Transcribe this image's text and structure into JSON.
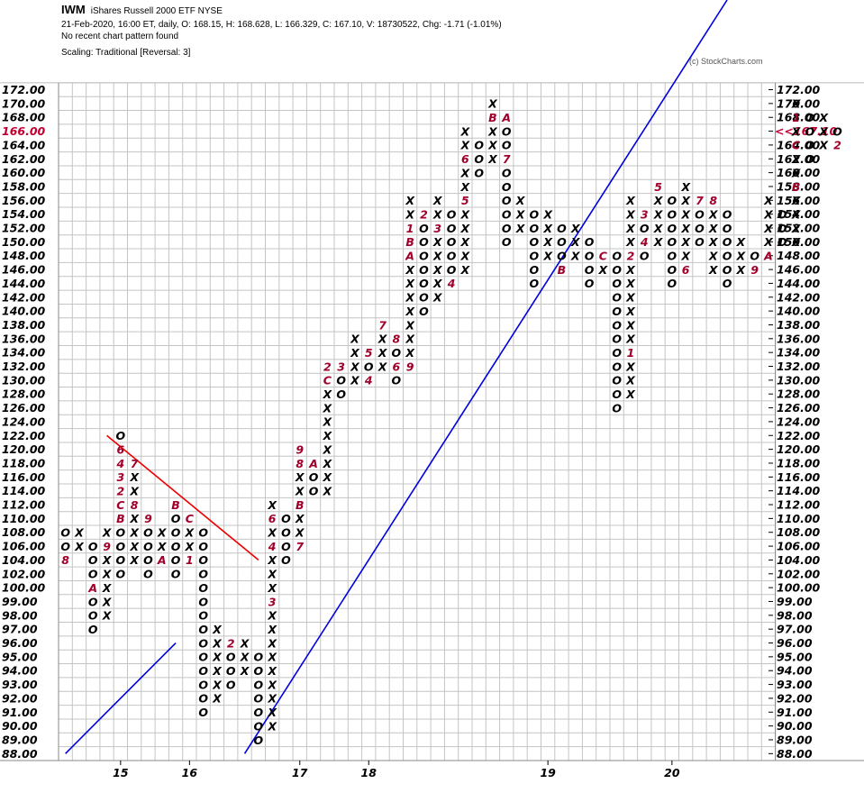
{
  "header": {
    "symbol": "IWM",
    "name": "iShares Russell 2000 ETF  NYSE",
    "line2": "21-Feb-2020, 16:00 ET, daily, O: 168.15, H: 168.628, L: 166.329, C: 167.10, V: 18730522, Chg: -1.71 (-1.01%)",
    "line3": "No recent chart pattern found",
    "line4": "Scaling: Traditional [Reversal: 3]",
    "copyright": "(c) StockCharts.com"
  },
  "colors": {
    "grid": "#c4c4c4",
    "mark": "#000000",
    "month": "#a0002a",
    "uptrend": "#0000dd",
    "downtrend": "#ee0000",
    "current": "#c00030"
  },
  "chart_data": {
    "type": "point-and-figure",
    "reversal": 3,
    "scaling": "Traditional",
    "price_levels": [
      "88.00",
      "89.00",
      "90.00",
      "91.00",
      "92.00",
      "93.00",
      "94.00",
      "95.00",
      "96.00",
      "97.00",
      "98.00",
      "99.00",
      "100.00",
      "102.00",
      "104.00",
      "106.00",
      "108.00",
      "110.00",
      "112.00",
      "114.00",
      "116.00",
      "118.00",
      "120.00",
      "122.00",
      "124.00",
      "126.00",
      "128.00",
      "130.00",
      "132.00",
      "134.00",
      "136.00",
      "138.00",
      "140.00",
      "142.00",
      "144.00",
      "146.00",
      "148.00",
      "150.00",
      "152.00",
      "154.00",
      "156.00",
      "158.00",
      "160.00",
      "162.00",
      "164.00",
      "166.00",
      "168.00",
      "170.00",
      "172.00"
    ],
    "current_price_label": "<<167.10",
    "current_price_level": "166.00",
    "year_labels": [
      {
        "col": 4,
        "text": "15"
      },
      {
        "col": 9,
        "text": "16"
      },
      {
        "col": 17,
        "text": "17"
      },
      {
        "col": 22,
        "text": "18"
      },
      {
        "col": 35,
        "text": "19"
      },
      {
        "col": 44,
        "text": "20"
      }
    ],
    "columns": [
      {
        "t": "O",
        "from": "104.00",
        "to": "108.00",
        "m": {
          "104.00": "8"
        }
      },
      {
        "t": "X",
        "from": "106.00",
        "to": "108.00"
      },
      {
        "t": "O",
        "from": "97.00",
        "to": "106.00",
        "m": {
          "100.00": "A"
        }
      },
      {
        "t": "X",
        "from": "98.00",
        "to": "108.00",
        "m": {
          "106.00": "9"
        }
      },
      {
        "t": "O",
        "from": "102.00",
        "to": "122.00",
        "m": {
          "110.00": "B",
          "112.00": "C",
          "114.00": "2",
          "116.00": "3",
          "118.00": "4",
          "120.00": "6"
        }
      },
      {
        "t": "X",
        "from": "104.00",
        "to": "118.00",
        "m": {
          "112.00": "8",
          "118.00": "7"
        }
      },
      {
        "t": "O",
        "from": "102.00",
        "to": "110.00",
        "m": {
          "110.00": "9"
        }
      },
      {
        "t": "X",
        "from": "104.00",
        "to": "108.00",
        "m": {
          "104.00": "A"
        }
      },
      {
        "t": "O",
        "from": "102.00",
        "to": "112.00",
        "m": {
          "112.00": "B"
        }
      },
      {
        "t": "X",
        "from": "104.00",
        "to": "110.00",
        "m": {
          "104.00": "1",
          "110.00": "C"
        }
      },
      {
        "t": "O",
        "from": "91.00",
        "to": "108.00"
      },
      {
        "t": "X",
        "from": "92.00",
        "to": "97.00"
      },
      {
        "t": "O",
        "from": "93.00",
        "to": "96.00",
        "m": {
          "96.00": "2"
        }
      },
      {
        "t": "X",
        "from": "94.00",
        "to": "96.00"
      },
      {
        "t": "O",
        "from": "89.00",
        "to": "95.00"
      },
      {
        "t": "X",
        "from": "90.00",
        "to": "112.00",
        "m": {
          "99.00": "3",
          "106.00": "4",
          "110.00": "6"
        }
      },
      {
        "t": "O",
        "from": "104.00",
        "to": "110.00"
      },
      {
        "t": "X",
        "from": "106.00",
        "to": "120.00",
        "m": {
          "106.00": "7",
          "112.00": "B",
          "118.00": "8",
          "120.00": "9"
        }
      },
      {
        "t": "O",
        "from": "114.00",
        "to": "118.00",
        "m": {
          "118.00": "A"
        }
      },
      {
        "t": "X",
        "from": "114.00",
        "to": "132.00",
        "m": {
          "130.00": "C",
          "132.00": "2"
        }
      },
      {
        "t": "O",
        "from": "128.00",
        "to": "132.00",
        "m": {
          "132.00": "3"
        }
      },
      {
        "t": "X",
        "from": "130.00",
        "to": "136.00"
      },
      {
        "t": "O",
        "from": "130.00",
        "to": "134.00",
        "m": {
          "130.00": "4",
          "134.00": "5"
        }
      },
      {
        "t": "X",
        "from": "132.00",
        "to": "138.00",
        "m": {
          "138.00": "7"
        }
      },
      {
        "t": "O",
        "from": "130.00",
        "to": "136.00",
        "m": {
          "132.00": "6",
          "136.00": "8"
        }
      },
      {
        "t": "X",
        "from": "132.00",
        "to": "156.00",
        "m": {
          "132.00": "9",
          "148.00": "A",
          "150.00": "B",
          "152.00": "1"
        }
      },
      {
        "t": "O",
        "from": "140.00",
        "to": "154.00",
        "m": {
          "154.00": "2"
        }
      },
      {
        "t": "X",
        "from": "142.00",
        "to": "156.00",
        "m": {
          "152.00": "3"
        }
      },
      {
        "t": "O",
        "from": "144.00",
        "to": "154.00",
        "m": {
          "144.00": "4"
        }
      },
      {
        "t": "X",
        "from": "146.00",
        "to": "166.00",
        "m": {
          "156.00": "5",
          "162.00": "6"
        }
      },
      {
        "t": "O",
        "from": "160.00",
        "to": "164.00"
      },
      {
        "t": "X",
        "from": "162.00",
        "to": "170.00",
        "m": {
          "168.00": "B"
        }
      },
      {
        "t": "O",
        "from": "150.00",
        "to": "168.00",
        "m": {
          "162.00": "7",
          "168.00": "A"
        }
      },
      {
        "t": "X",
        "from": "152.00",
        "to": "156.00"
      },
      {
        "t": "O",
        "from": "144.00",
        "to": "154.00"
      },
      {
        "t": "X",
        "from": "148.00",
        "to": "154.00"
      },
      {
        "t": "O",
        "from": "146.00",
        "to": "152.00",
        "m": {
          "146.00": "B"
        }
      },
      {
        "t": "X",
        "from": "148.00",
        "to": "152.00"
      },
      {
        "t": "O",
        "from": "144.00",
        "to": "150.00"
      },
      {
        "t": "X",
        "from": "146.00",
        "to": "148.00",
        "m": {
          "148.00": "C"
        }
      },
      {
        "t": "O",
        "from": "126.00",
        "to": "148.00"
      },
      {
        "t": "X",
        "from": "128.00",
        "to": "156.00",
        "m": {
          "134.00": "1",
          "148.00": "2"
        }
      },
      {
        "t": "O",
        "from": "148.00",
        "to": "154.00",
        "m": {
          "150.00": "4",
          "154.00": "3"
        }
      },
      {
        "t": "X",
        "from": "150.00",
        "to": "158.00",
        "m": {
          "158.00": "5"
        }
      },
      {
        "t": "O",
        "from": "144.00",
        "to": "156.00"
      },
      {
        "t": "X",
        "from": "146.00",
        "to": "158.00",
        "m": {
          "146.00": "6"
        }
      },
      {
        "t": "O",
        "from": "150.00",
        "to": "156.00",
        "m": {
          "156.00": "7"
        }
      },
      {
        "t": "X",
        "from": "146.00",
        "to": "156.00",
        "m": {
          "156.00": "8"
        }
      },
      {
        "t": "O",
        "from": "144.00",
        "to": "154.00"
      },
      {
        "t": "X",
        "from": "146.00",
        "to": "150.00"
      },
      {
        "t": "O",
        "from": "146.00",
        "to": "148.00",
        "m": {
          "146.00": "9"
        }
      },
      {
        "t": "X",
        "from": "148.00",
        "to": "156.00",
        "m": {
          "148.00": "A"
        }
      },
      {
        "t": "O",
        "from": "150.00",
        "to": "154.00"
      },
      {
        "t": "X",
        "from": "150.00",
        "to": "170.00",
        "m": {
          "158.00": "B",
          "164.00": "C",
          "168.00": "1"
        }
      },
      {
        "t": "O",
        "from": "162.00",
        "to": "168.00"
      },
      {
        "t": "X",
        "from": "164.00",
        "to": "168.00"
      },
      {
        "t": "O",
        "from": "164.00",
        "to": "166.00",
        "m": {
          "164.00": "2"
        }
      }
    ],
    "trendlines": [
      {
        "type": "support",
        "color": "blue",
        "from": {
          "col": 0,
          "level": "88.00"
        },
        "to": {
          "col": 8,
          "level": "96.00"
        }
      },
      {
        "type": "resistance",
        "color": "red",
        "from": {
          "col": 3,
          "level": "122.00"
        },
        "to": {
          "col": 14,
          "level": "104.00"
        }
      },
      {
        "type": "support",
        "color": "blue",
        "from": {
          "col": 13,
          "level": "88.00"
        },
        "to": {
          "col": 48,
          "level": "151.00"
        }
      }
    ]
  }
}
